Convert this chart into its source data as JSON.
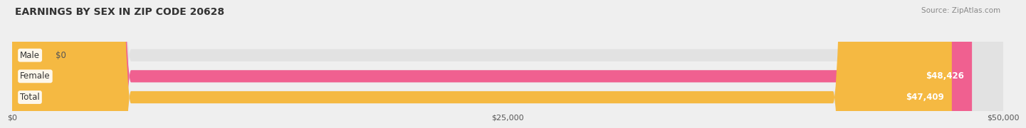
{
  "title": "EARNINGS BY SEX IN ZIP CODE 20628",
  "source": "Source: ZipAtlas.com",
  "categories": [
    "Male",
    "Female",
    "Total"
  ],
  "values": [
    0,
    48426,
    47409
  ],
  "bar_colors": [
    "#a8c4e0",
    "#f06090",
    "#f5b942"
  ],
  "bar_labels": [
    "$0",
    "$48,426",
    "$47,409"
  ],
  "background_color": "#efefef",
  "bar_bg_color": "#e2e2e2",
  "xlim": [
    0,
    50000
  ],
  "xticks": [
    0,
    25000,
    50000
  ],
  "xtick_labels": [
    "$0",
    "$25,000",
    "$50,000"
  ],
  "title_fontsize": 10,
  "label_fontsize": 8.5,
  "bar_height": 0.58,
  "figsize": [
    14.06,
    1.96
  ]
}
